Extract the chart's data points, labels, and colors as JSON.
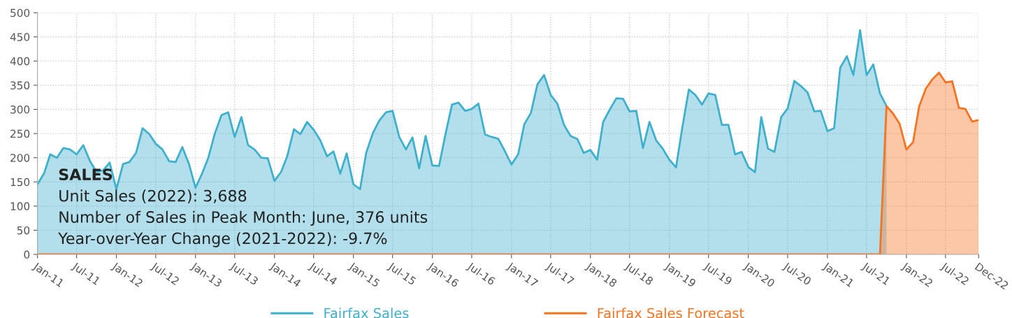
{
  "chart_data": {
    "type": "area",
    "x": [
      "2011-01",
      "2011-02",
      "2011-03",
      "2011-04",
      "2011-05",
      "2011-06",
      "2011-07",
      "2011-08",
      "2011-09",
      "2011-10",
      "2011-11",
      "2011-12",
      "2012-01",
      "2012-02",
      "2012-03",
      "2012-04",
      "2012-05",
      "2012-06",
      "2012-07",
      "2012-08",
      "2012-09",
      "2012-10",
      "2012-11",
      "2012-12",
      "2013-01",
      "2013-02",
      "2013-03",
      "2013-04",
      "2013-05",
      "2013-06",
      "2013-07",
      "2013-08",
      "2013-09",
      "2013-10",
      "2013-11",
      "2013-12",
      "2014-01",
      "2014-02",
      "2014-03",
      "2014-04",
      "2014-05",
      "2014-06",
      "2014-07",
      "2014-08",
      "2014-09",
      "2014-10",
      "2014-11",
      "2014-12",
      "2015-01",
      "2015-02",
      "2015-03",
      "2015-04",
      "2015-05",
      "2015-06",
      "2015-07",
      "2015-08",
      "2015-09",
      "2015-10",
      "2015-11",
      "2015-12",
      "2016-01",
      "2016-02",
      "2016-03",
      "2016-04",
      "2016-05",
      "2016-06",
      "2016-07",
      "2016-08",
      "2016-09",
      "2016-10",
      "2016-11",
      "2016-12",
      "2017-01",
      "2017-02",
      "2017-03",
      "2017-04",
      "2017-05",
      "2017-06",
      "2017-07",
      "2017-08",
      "2017-09",
      "2017-10",
      "2017-11",
      "2017-12",
      "2018-01",
      "2018-02",
      "2018-03",
      "2018-04",
      "2018-05",
      "2018-06",
      "2018-07",
      "2018-08",
      "2018-09",
      "2018-10",
      "2018-11",
      "2018-12",
      "2019-01",
      "2019-02",
      "2019-03",
      "2019-04",
      "2019-05",
      "2019-06",
      "2019-07",
      "2019-08",
      "2019-09",
      "2019-10",
      "2019-11",
      "2019-12",
      "2020-01",
      "2020-02",
      "2020-03",
      "2020-04",
      "2020-05",
      "2020-06",
      "2020-07",
      "2020-08",
      "2020-09",
      "2020-10",
      "2020-11",
      "2020-12",
      "2021-01",
      "2021-02",
      "2021-03",
      "2021-04",
      "2021-05",
      "2021-06",
      "2021-07",
      "2021-08",
      "2021-09",
      "2021-10",
      "2021-11",
      "2021-12",
      "2022-01",
      "2022-02",
      "2022-03",
      "2022-04",
      "2022-05",
      "2022-06",
      "2022-07",
      "2022-08",
      "2022-09",
      "2022-10",
      "2022-11",
      "2022-12"
    ],
    "series": [
      {
        "name": "Fairfax Sales",
        "color": "#3fb0cc",
        "values": [
          145,
          168,
          207,
          200,
          220,
          217,
          207,
          226,
          193,
          171,
          174,
          190,
          135,
          187,
          191,
          210,
          261,
          249,
          229,
          217,
          193,
          191,
          222,
          188,
          138,
          168,
          200,
          251,
          288,
          294,
          243,
          284,
          226,
          217,
          200,
          199,
          152,
          171,
          203,
          259,
          249,
          274,
          258,
          236,
          203,
          213,
          167,
          209,
          145,
          135,
          210,
          251,
          277,
          294,
          297,
          243,
          217,
          242,
          178,
          245,
          184,
          183,
          247,
          310,
          314,
          297,
          301,
          312,
          248,
          243,
          239,
          214,
          186,
          207,
          269,
          293,
          352,
          371,
          330,
          312,
          268,
          245,
          239,
          210,
          216,
          196,
          274,
          300,
          323,
          322,
          296,
          297,
          220,
          274,
          236,
          219,
          196,
          180,
          260,
          341,
          330,
          310,
          333,
          330,
          268,
          268,
          207,
          212,
          181,
          170,
          284,
          219,
          212,
          284,
          302,
          359,
          348,
          335,
          296,
          297,
          255,
          261,
          386,
          410,
          371,
          464,
          371,
          393,
          333,
          307,
          null,
          null,
          null,
          null,
          null,
          null,
          null,
          null,
          null,
          null,
          null,
          null,
          null,
          null
        ]
      },
      {
        "name": "Fairfax Sales Forecast",
        "color": "#f47421",
        "values": [
          0,
          0,
          0,
          0,
          0,
          0,
          0,
          0,
          0,
          0,
          0,
          0,
          0,
          0,
          0,
          0,
          0,
          0,
          0,
          0,
          0,
          0,
          0,
          0,
          0,
          0,
          0,
          0,
          0,
          0,
          0,
          0,
          0,
          0,
          0,
          0,
          0,
          0,
          0,
          0,
          0,
          0,
          0,
          0,
          0,
          0,
          0,
          0,
          0,
          0,
          0,
          0,
          0,
          0,
          0,
          0,
          0,
          0,
          0,
          0,
          0,
          0,
          0,
          0,
          0,
          0,
          0,
          0,
          0,
          0,
          0,
          0,
          0,
          0,
          0,
          0,
          0,
          0,
          0,
          0,
          0,
          0,
          0,
          0,
          0,
          0,
          0,
          0,
          0,
          0,
          0,
          0,
          0,
          0,
          0,
          0,
          0,
          0,
          0,
          0,
          0,
          0,
          0,
          0,
          0,
          0,
          0,
          0,
          0,
          0,
          0,
          0,
          0,
          0,
          0,
          0,
          0,
          0,
          0,
          0,
          0,
          0,
          0,
          0,
          0,
          0,
          0,
          0,
          0,
          307,
          291,
          270,
          217,
          232,
          306,
          343,
          362,
          376,
          356,
          358,
          303,
          301,
          275,
          278
        ]
      }
    ],
    "xlim": [
      "2011-01",
      "2022-12"
    ],
    "xticks": [
      {
        "value": "2011-01",
        "label": "Jan-11"
      },
      {
        "value": "2011-07",
        "label": "Jul-11"
      },
      {
        "value": "2012-01",
        "label": "Jan-12"
      },
      {
        "value": "2012-07",
        "label": "Jul-12"
      },
      {
        "value": "2013-01",
        "label": "Jan-13"
      },
      {
        "value": "2013-07",
        "label": "Jul-13"
      },
      {
        "value": "2014-01",
        "label": "Jan-14"
      },
      {
        "value": "2014-07",
        "label": "Jul-14"
      },
      {
        "value": "2015-01",
        "label": "Jan-15"
      },
      {
        "value": "2015-07",
        "label": "Jul-15"
      },
      {
        "value": "2016-01",
        "label": "Jan-16"
      },
      {
        "value": "2016-07",
        "label": "Jul-16"
      },
      {
        "value": "2017-01",
        "label": "Jan-17"
      },
      {
        "value": "2017-07",
        "label": "Jul-17"
      },
      {
        "value": "2018-01",
        "label": "Jan-18"
      },
      {
        "value": "2018-07",
        "label": "Jul-18"
      },
      {
        "value": "2019-01",
        "label": "Jan-19"
      },
      {
        "value": "2019-07",
        "label": "Jul-19"
      },
      {
        "value": "2020-01",
        "label": "Jan-20"
      },
      {
        "value": "2020-07",
        "label": "Jul-20"
      },
      {
        "value": "2021-01",
        "label": "Jan-21"
      },
      {
        "value": "2021-07",
        "label": "Jul-21"
      },
      {
        "value": "2022-01",
        "label": "Jan-22"
      },
      {
        "value": "2022-07",
        "label": "Jul-22"
      },
      {
        "value": "2022-12",
        "label": "Dec-22"
      }
    ],
    "ylim": [
      0,
      500
    ],
    "yticks": [
      0,
      50,
      100,
      150,
      200,
      250,
      300,
      350,
      400,
      450,
      500
    ],
    "grid": true,
    "legend": "bottom",
    "annotations": [
      "SALES",
      "Unit Sales (2022): 3,688",
      "Number of Sales in Peak Month: June, 376 units",
      "Year-over-Year Change (2021-2022): -9.7%"
    ]
  }
}
